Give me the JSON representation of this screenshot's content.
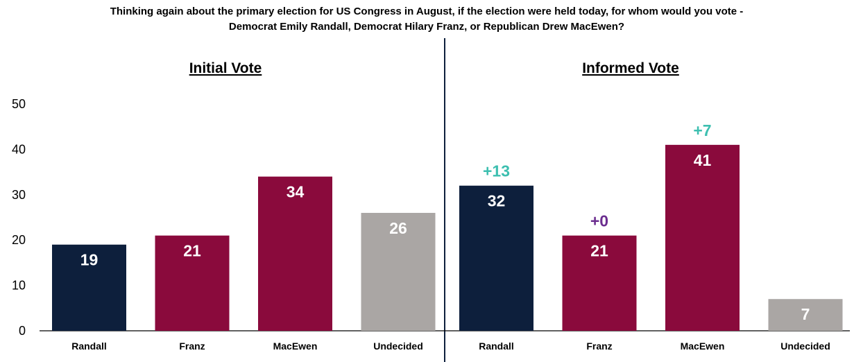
{
  "chart_data": {
    "type": "bar",
    "title_lines": [
      "Thinking again about the primary election for US Congress in August, if the election were held today, for whom would you vote -",
      "Democrat Emily Randall, Democrat Hilary Franz, or Republican Drew MacEwen?"
    ],
    "ylim": [
      0,
      50
    ],
    "yticks": [
      0,
      10,
      20,
      30,
      40,
      50
    ],
    "grid": false,
    "panels": [
      {
        "title": "Initial Vote",
        "categories": [
          "Randall",
          "Franz",
          "MacEwen",
          "Undecided"
        ],
        "values": [
          19,
          21,
          34,
          26
        ],
        "colors": [
          "#0d1f3c",
          "#8a0a3c",
          "#8a0a3c",
          "#aaa6a4"
        ],
        "changes": [
          null,
          null,
          null,
          null
        ]
      },
      {
        "title": "Informed Vote",
        "categories": [
          "Randall",
          "Franz",
          "MacEwen",
          "Undecided"
        ],
        "values": [
          32,
          21,
          41,
          7
        ],
        "colors": [
          "#0d1f3c",
          "#8a0a3c",
          "#8a0a3c",
          "#aaa6a4"
        ],
        "changes": [
          {
            "label": "+13",
            "color": "#3dbfb0"
          },
          {
            "label": "+0",
            "color": "#6b2d8f"
          },
          {
            "label": "+7",
            "color": "#3dbfb0"
          },
          null
        ]
      }
    ]
  }
}
